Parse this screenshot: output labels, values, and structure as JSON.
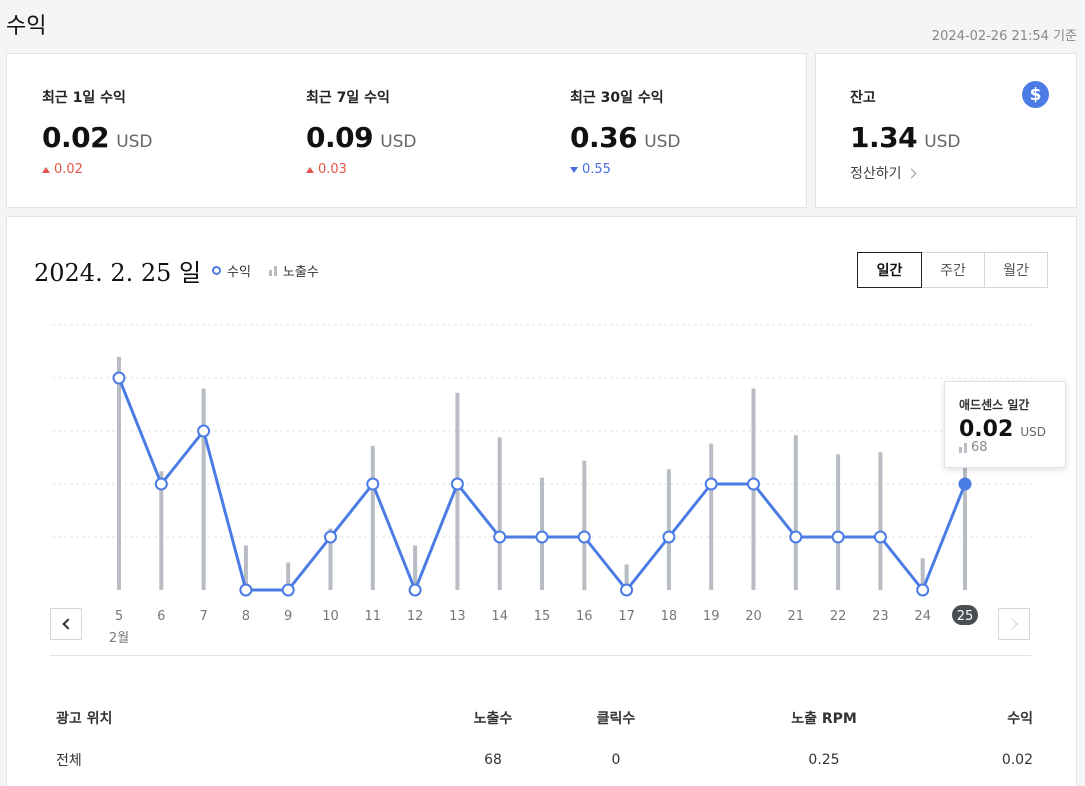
{
  "header": {
    "title": "수익",
    "as_of": "2024-02-26 21:54 기준"
  },
  "summary": [
    {
      "label": "최근 1일 수익",
      "value": "0.02",
      "unit": "USD",
      "delta": "0.02",
      "direction": "up"
    },
    {
      "label": "최근 7일 수익",
      "value": "0.09",
      "unit": "USD",
      "delta": "0.03",
      "direction": "up"
    },
    {
      "label": "최근 30일 수익",
      "value": "0.36",
      "unit": "USD",
      "delta": "0.55",
      "direction": "down"
    }
  ],
  "balance": {
    "label": "잔고",
    "value": "1.34",
    "unit": "USD",
    "settle_label": "정산하기",
    "icon": "dollar-icon"
  },
  "chart_header": {
    "date": "2024. 2. 25 일",
    "legend_revenue": "수익",
    "legend_impressions": "노출수",
    "tabs": [
      "일간",
      "주간",
      "월간"
    ],
    "active_tab": "일간"
  },
  "tooltip": {
    "title": "애드센스 일간",
    "value": "0.02",
    "unit": "USD",
    "impressions": "68"
  },
  "colors": {
    "revenue_line": "#4b7be5",
    "impression_bar": "#b8bcc3",
    "up": "#e0554d",
    "down": "#4a6ee0"
  },
  "chart_data": {
    "type": "line",
    "categories": [
      "5",
      "6",
      "7",
      "8",
      "9",
      "10",
      "11",
      "12",
      "13",
      "14",
      "15",
      "16",
      "17",
      "18",
      "19",
      "20",
      "21",
      "22",
      "23",
      "24",
      "25"
    ],
    "month_label": "2월",
    "selected": "25",
    "series": [
      {
        "name": "수익",
        "type": "line",
        "values": [
          0.04,
          0.02,
          0.03,
          0.0,
          0.0,
          0.01,
          0.02,
          0.0,
          0.02,
          0.01,
          0.01,
          0.01,
          0.0,
          0.01,
          0.02,
          0.02,
          0.01,
          0.01,
          0.01,
          0.0,
          0.02
        ]
      },
      {
        "name": "노출수",
        "type": "bar",
        "values": [
          110,
          56,
          95,
          21,
          13,
          29,
          68,
          21,
          93,
          72,
          53,
          61,
          12,
          57,
          69,
          95,
          73,
          64,
          65,
          15,
          68
        ]
      }
    ],
    "ylim_revenue": [
      0,
      0.05
    ],
    "ylim_impressions": [
      0,
      125
    ],
    "grid": true
  },
  "table": {
    "headers": [
      "광고 위치",
      "노출수",
      "클릭수",
      "노출 RPM",
      "수익"
    ],
    "rows": [
      [
        "전체",
        "68",
        "0",
        "0.25",
        "0.02"
      ]
    ]
  }
}
